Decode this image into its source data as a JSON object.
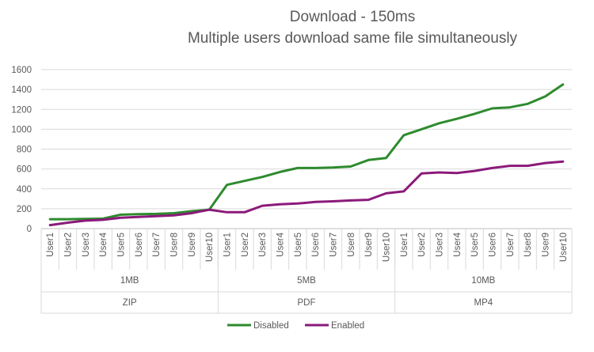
{
  "chart_data": {
    "type": "line",
    "title": "Download - 150ms",
    "subtitle": "Multiple users download same file simultaneously",
    "ylim": [
      0,
      1600
    ],
    "yticks": [
      0,
      200,
      400,
      600,
      800,
      1000,
      1200,
      1400,
      1600
    ],
    "grid": true,
    "legend_position": "bottom",
    "categories": [
      "User1",
      "User2",
      "User3",
      "User4",
      "User5",
      "User6",
      "User7",
      "User8",
      "User9",
      "User10",
      "User1",
      "User2",
      "User3",
      "User4",
      "User5",
      "User6",
      "User7",
      "User8",
      "User9",
      "User10",
      "User1",
      "User2",
      "User3",
      "User4",
      "User5",
      "User6",
      "User7",
      "User8",
      "User9",
      "User10"
    ],
    "groups": [
      {
        "size": "1MB",
        "type": "ZIP",
        "count": 10
      },
      {
        "size": "5MB",
        "type": "PDF",
        "count": 10
      },
      {
        "size": "10MB",
        "type": "MP4",
        "count": 10
      }
    ],
    "series": [
      {
        "name": "Disabled",
        "color": "#2e8b2e",
        "values": [
          95,
          95,
          97,
          100,
          140,
          145,
          148,
          155,
          175,
          190,
          440,
          480,
          520,
          570,
          610,
          610,
          615,
          625,
          690,
          710,
          940,
          1000,
          1060,
          1105,
          1155,
          1210,
          1220,
          1255,
          1330,
          1450
        ]
      },
      {
        "name": "Enabled",
        "color": "#8b1a7a",
        "values": [
          35,
          60,
          80,
          88,
          110,
          118,
          125,
          133,
          155,
          190,
          165,
          165,
          230,
          245,
          252,
          268,
          275,
          283,
          290,
          355,
          375,
          555,
          565,
          560,
          580,
          610,
          632,
          632,
          660,
          675
        ]
      }
    ]
  }
}
